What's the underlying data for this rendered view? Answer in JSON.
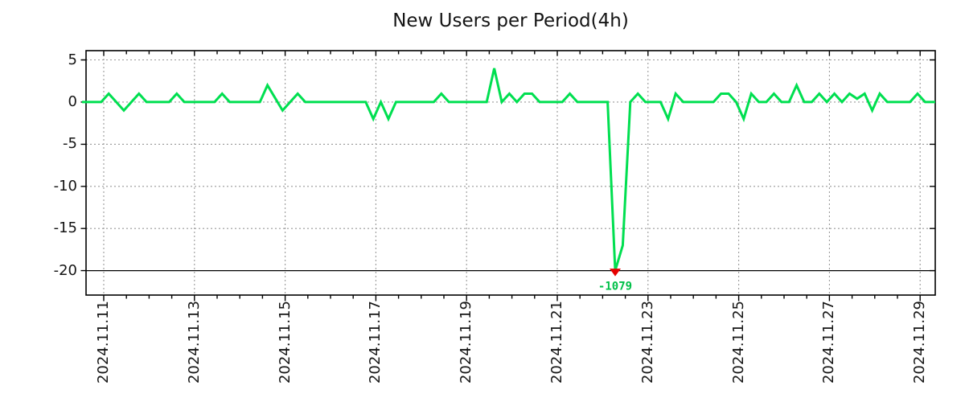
{
  "chart_data": {
    "type": "line",
    "title": "New Users per Period(4h)",
    "period_hours": 4,
    "x_tick_labels": [
      "2024.11.11",
      "2024.11.13",
      "2024.11.15",
      "2024.11.17",
      "2024.11.19",
      "2024.11.21",
      "2024.11.23",
      "2024.11.25",
      "2024.11.27",
      "2024.11.29"
    ],
    "y_ticks": [
      5,
      0,
      -5,
      -10,
      -15,
      -20
    ],
    "y_tick_labels": [
      "5",
      "0",
      "-5",
      "-10",
      "-15",
      "-20"
    ],
    "ylim": [
      -22.9,
      6.1
    ],
    "clip_min": -20,
    "grid_on": true,
    "series": [
      {
        "name": "New Users",
        "color": "#00DF50",
        "values": [
          0,
          0,
          0,
          1,
          0,
          -1,
          0,
          1,
          0,
          0,
          0,
          0,
          1,
          0,
          0,
          0,
          0,
          0,
          1,
          0,
          0,
          0,
          0,
          0,
          2,
          0.5,
          -1,
          0,
          1,
          0,
          0,
          0,
          0,
          0,
          0,
          0,
          0,
          0,
          -2,
          0,
          -2,
          0,
          0,
          0,
          0,
          0,
          0,
          1,
          0,
          0,
          0,
          0,
          0,
          0,
          4,
          0,
          1,
          0,
          1,
          1,
          0,
          0,
          0,
          0,
          1,
          0,
          0,
          0,
          0,
          0,
          -1079,
          -17,
          0,
          1,
          0,
          0,
          0,
          -2,
          1,
          0,
          0,
          0,
          0,
          0,
          1,
          1,
          0,
          -2,
          1,
          0,
          0,
          1,
          0,
          0,
          2,
          0,
          0,
          1,
          0,
          1,
          0,
          1,
          0.4,
          1,
          -1,
          1,
          0,
          0,
          0,
          0,
          1,
          0,
          0
        ]
      }
    ],
    "annotation": {
      "text": "-1079",
      "value": -1079,
      "point_index": 70,
      "marker": "triangle-down",
      "marker_color": "#E60000",
      "text_color": "#00C048"
    },
    "colors": {
      "grid": "#999999",
      "axis": "#000000",
      "clip_line": "#000000",
      "title_text": "#151515",
      "tick_text": "#151515",
      "background": "#ffffff"
    }
  }
}
